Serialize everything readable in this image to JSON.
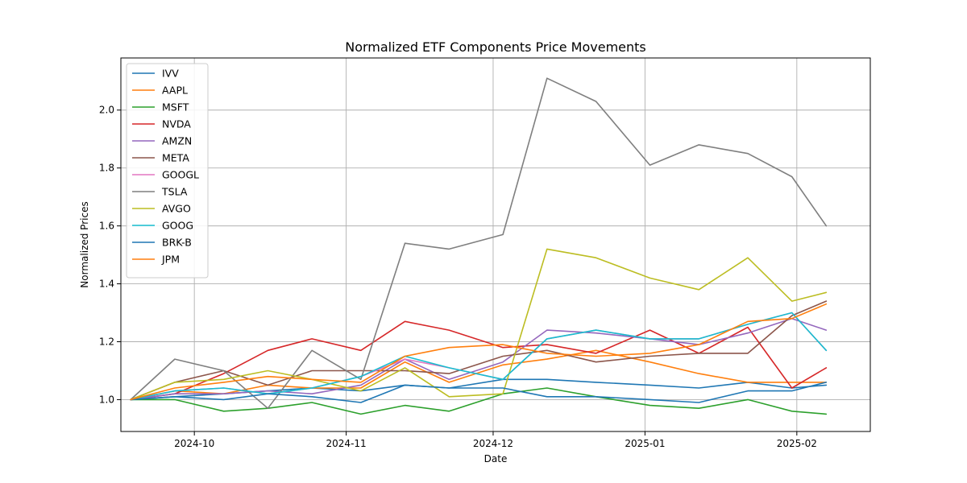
{
  "chart_data": {
    "type": "line",
    "title": "Normalized ETF Components Price Movements",
    "xlabel": "Date",
    "ylabel": "Normalized Prices",
    "x_type": "date",
    "xlim": [
      "2024-09-16",
      "2025-02-16"
    ],
    "ylim": [
      0.89,
      2.18
    ],
    "x_ticks": [
      "2024-10-01",
      "2024-11-01",
      "2024-12-01",
      "2025-01-01",
      "2025-02-01"
    ],
    "x_tick_labels": [
      "2024-10",
      "2024-11",
      "2024-12",
      "2025-01",
      "2025-02"
    ],
    "y_ticks": [
      1.0,
      1.2,
      1.4,
      1.6,
      1.8,
      2.0
    ],
    "y_tick_labels": [
      "1.0",
      "1.2",
      "1.4",
      "1.6",
      "1.8",
      "2.0"
    ],
    "grid": true,
    "legend_position": "upper-left",
    "x": [
      "2024-09-18",
      "2024-09-27",
      "2024-10-07",
      "2024-10-16",
      "2024-10-25",
      "2024-11-04",
      "2024-11-13",
      "2024-11-22",
      "2024-12-03",
      "2024-12-12",
      "2024-12-22",
      "2025-01-02",
      "2025-01-12",
      "2025-01-22",
      "2025-01-31",
      "2025-02-07"
    ],
    "series": [
      {
        "name": "IVV",
        "color": "#1f77b4",
        "values": [
          1.0,
          1.01,
          1.02,
          1.03,
          1.04,
          1.03,
          1.05,
          1.04,
          1.07,
          1.07,
          1.06,
          1.05,
          1.04,
          1.06,
          1.04,
          1.05
        ]
      },
      {
        "name": "AAPL",
        "color": "#ff7f0e",
        "values": [
          1.0,
          1.03,
          1.02,
          1.05,
          1.04,
          1.04,
          1.13,
          1.06,
          1.12,
          1.14,
          1.17,
          1.13,
          1.09,
          1.06,
          1.06,
          1.06
        ]
      },
      {
        "name": "MSFT",
        "color": "#2ca02c",
        "values": [
          1.0,
          1.0,
          0.96,
          0.97,
          0.99,
          0.95,
          0.98,
          0.96,
          1.02,
          1.04,
          1.01,
          0.98,
          0.97,
          1.0,
          0.96,
          0.95
        ]
      },
      {
        "name": "NVDA",
        "color": "#d62728",
        "values": [
          1.0,
          1.02,
          1.09,
          1.17,
          1.21,
          1.17,
          1.27,
          1.24,
          1.18,
          1.19,
          1.16,
          1.24,
          1.16,
          1.25,
          1.04,
          1.11
        ]
      },
      {
        "name": "AMZN",
        "color": "#9467bd",
        "values": [
          1.0,
          1.02,
          1.02,
          1.03,
          1.02,
          1.05,
          1.14,
          1.07,
          1.13,
          1.24,
          1.23,
          1.21,
          1.19,
          1.23,
          1.28,
          1.24
        ]
      },
      {
        "name": "META",
        "color": "#8c564b",
        "values": [
          1.0,
          1.06,
          1.1,
          1.05,
          1.1,
          1.1,
          1.1,
          1.09,
          1.15,
          1.17,
          1.13,
          1.15,
          1.16,
          1.16,
          1.29,
          1.34
        ]
      },
      {
        "name": "GOOGL",
        "color": "#e377c2",
        "values": [
          1.0,
          1.03,
          1.04,
          1.02,
          1.04,
          1.08,
          1.14,
          1.11,
          1.07,
          1.21,
          1.24,
          1.21,
          1.21,
          1.26,
          1.3,
          1.17
        ]
      },
      {
        "name": "TSLA",
        "color": "#7f7f7f",
        "values": [
          1.0,
          1.14,
          1.1,
          0.97,
          1.17,
          1.07,
          1.54,
          1.52,
          1.57,
          2.11,
          2.03,
          1.81,
          1.88,
          1.85,
          1.77,
          1.6
        ]
      },
      {
        "name": "AVGO",
        "color": "#bcbd22",
        "values": [
          1.0,
          1.06,
          1.07,
          1.1,
          1.07,
          1.03,
          1.11,
          1.01,
          1.02,
          1.52,
          1.49,
          1.42,
          1.38,
          1.49,
          1.34,
          1.37
        ]
      },
      {
        "name": "GOOG",
        "color": "#17becf",
        "values": [
          1.0,
          1.03,
          1.04,
          1.02,
          1.04,
          1.08,
          1.15,
          1.11,
          1.07,
          1.21,
          1.24,
          1.21,
          1.21,
          1.26,
          1.3,
          1.17
        ]
      },
      {
        "name": "BRK-B",
        "color": "#1f77b4",
        "values": [
          1.0,
          1.01,
          1.0,
          1.02,
          1.01,
          0.99,
          1.05,
          1.04,
          1.04,
          1.01,
          1.01,
          1.0,
          0.99,
          1.03,
          1.03,
          1.06
        ]
      },
      {
        "name": "JPM",
        "color": "#ff7f0e",
        "values": [
          1.0,
          1.04,
          1.06,
          1.08,
          1.07,
          1.06,
          1.15,
          1.18,
          1.19,
          1.16,
          1.15,
          1.16,
          1.19,
          1.27,
          1.28,
          1.33
        ]
      }
    ]
  }
}
